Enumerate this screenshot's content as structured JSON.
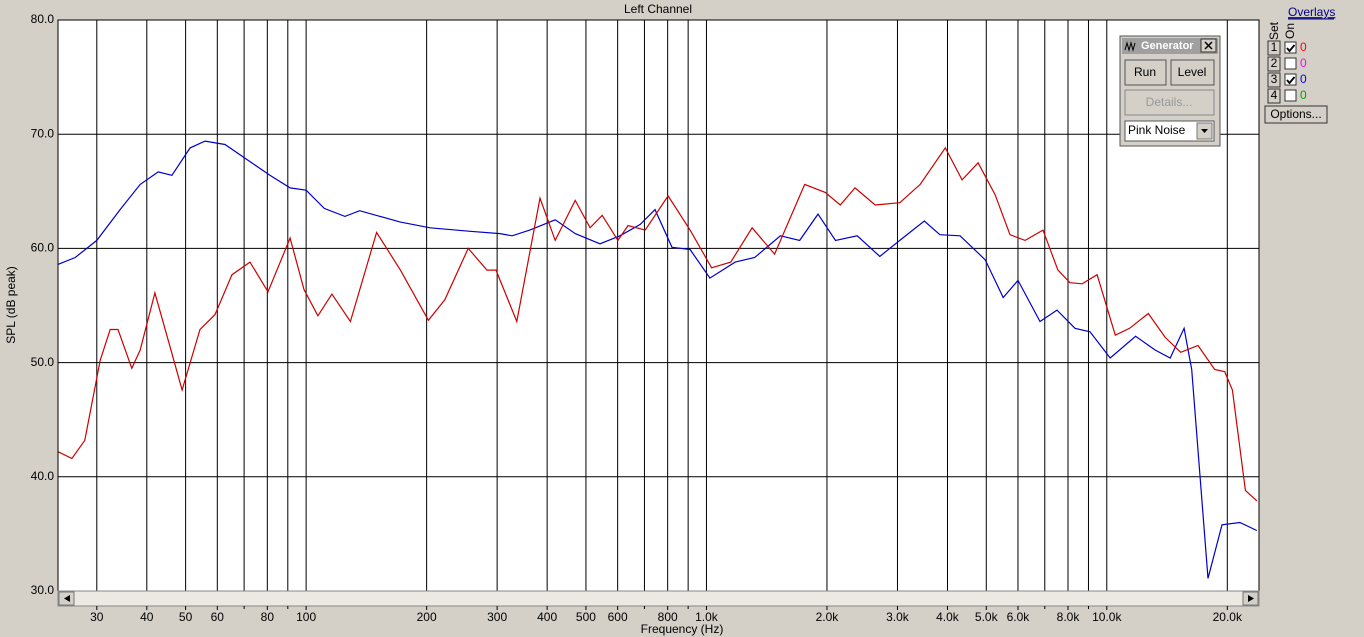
{
  "chart_data": {
    "type": "line",
    "title": "Left Channel",
    "xlabel": "Frequency (Hz)",
    "ylabel": "SPL (dB peak)",
    "xscale": "log",
    "grid": true,
    "xlim": [
      24,
      24000
    ],
    "ylim": [
      30,
      80
    ],
    "yticks": [
      {
        "value": 30,
        "label": "30.0"
      },
      {
        "value": 40,
        "label": "40.0"
      },
      {
        "value": 50,
        "label": "50.0"
      },
      {
        "value": 60,
        "label": "60.0"
      },
      {
        "value": 70,
        "label": "70.0"
      },
      {
        "value": 80,
        "label": "80.0"
      }
    ],
    "xticks": [
      30,
      40,
      50,
      60,
      80,
      100,
      200,
      300,
      400,
      500,
      600,
      800,
      {
        "value": 1000,
        "label": "1.0k"
      },
      {
        "value": 2000,
        "label": "2.0k"
      },
      {
        "value": 3000,
        "label": "3.0k"
      },
      {
        "value": 4000,
        "label": "4.0k"
      },
      {
        "value": 5000,
        "label": "5.0k"
      },
      {
        "value": 6000,
        "label": "6.0k"
      },
      {
        "value": 8000,
        "label": "8.0k"
      },
      {
        "value": 10000,
        "label": "10.0k"
      },
      {
        "value": 20000,
        "label": "20.0k"
      }
    ],
    "xminorticks": [
      70,
      90,
      700,
      900,
      7000,
      9000
    ],
    "series": [
      {
        "color": "#0000cc",
        "x": [
          24,
          26.5,
          30,
          34.3,
          38.5,
          42.7,
          46.2,
          51.3,
          55.9,
          62.7,
          72.4,
          81.2,
          91.2,
          100,
          111,
          125,
          136,
          153,
          172,
          204,
          257,
          305,
          327,
          362,
          419,
          470,
          542,
          608,
          683,
          744,
          820,
          910,
          1020,
          1180,
          1320,
          1530,
          1710,
          1900,
          2100,
          2380,
          2710,
          3040,
          3500,
          3830,
          4300,
          4970,
          5510,
          6000,
          6810,
          7510,
          8330,
          9080,
          10200,
          11800,
          13200,
          14400,
          15600,
          16300,
          17900,
          19400,
          21500,
          23700
        ],
        "values": [
          58.6,
          59.2,
          60.7,
          63.4,
          65.6,
          66.7,
          66.4,
          68.8,
          69.4,
          69.1,
          67.6,
          66.4,
          65.3,
          65.1,
          63.5,
          62.8,
          63.3,
          62.8,
          62.3,
          61.8,
          61.5,
          61.3,
          61.1,
          61.6,
          62.5,
          61.3,
          60.4,
          61.1,
          62.1,
          63.4,
          60.1,
          59.9,
          57.4,
          58.8,
          59.2,
          61.1,
          60.7,
          63.0,
          60.7,
          61.1,
          59.3,
          60.7,
          62.4,
          61.2,
          61.1,
          59.0,
          55.7,
          57.2,
          53.6,
          54.6,
          53.0,
          52.7,
          50.4,
          52.3,
          51.1,
          50.4,
          53.0,
          49.4,
          31.1,
          35.8,
          36.0,
          35.3
        ]
      },
      {
        "color": "#cc0000",
        "x": [
          24,
          26,
          28,
          30.6,
          32.4,
          33.9,
          36.7,
          38.5,
          41.9,
          45.2,
          49,
          54.3,
          59.2,
          65.3,
          72.4,
          80.3,
          91.2,
          98.8,
          107,
          116,
          129,
          150,
          172,
          202,
          222,
          254,
          283,
          298,
          336,
          384,
          419,
          470,
          512,
          549,
          601,
          637,
          703,
          802,
          910,
          1030,
          1150,
          1300,
          1480,
          1760,
          1980,
          2160,
          2350,
          2640,
          3040,
          3420,
          3950,
          4350,
          4770,
          5260,
          5730,
          6250,
          6930,
          7550,
          8090,
          8680,
          9460,
          10500,
          11400,
          12700,
          14000,
          15300,
          16900,
          18600,
          19700,
          20600,
          22200,
          23700
        ],
        "values": [
          42.2,
          41.6,
          43.2,
          50.2,
          52.9,
          52.9,
          49.5,
          51.1,
          56.1,
          52.0,
          47.6,
          52.9,
          54.2,
          57.7,
          58.8,
          56.2,
          60.9,
          56.4,
          54.1,
          56.0,
          53.6,
          61.4,
          58.1,
          53.7,
          55.5,
          60.0,
          58.1,
          58.1,
          53.6,
          64.4,
          60.7,
          64.2,
          61.8,
          62.9,
          60.7,
          62.0,
          61.6,
          64.6,
          61.6,
          58.3,
          58.8,
          61.8,
          59.5,
          65.6,
          64.9,
          63.8,
          65.3,
          63.8,
          64.0,
          65.6,
          68.8,
          66.0,
          67.5,
          64.7,
          61.2,
          60.7,
          61.6,
          58.1,
          57.0,
          56.9,
          57.7,
          52.4,
          53.0,
          54.3,
          52.2,
          50.9,
          51.5,
          49.4,
          49.2,
          47.6,
          38.8,
          37.9
        ]
      }
    ]
  },
  "generator": {
    "title": "Generator",
    "run": "Run",
    "level": "Level",
    "details": "Details...",
    "signal": "Pink Noise"
  },
  "overlays": {
    "title": "Overlays",
    "set_label": "Set",
    "on_label": "On",
    "options": "Options...",
    "rows": [
      {
        "set": "1",
        "checked": true,
        "value": "0",
        "color": "#ff0000"
      },
      {
        "set": "2",
        "checked": false,
        "value": "0",
        "color": "#ff00ff"
      },
      {
        "set": "3",
        "checked": true,
        "value": "0",
        "color": "#0000ff"
      },
      {
        "set": "4",
        "checked": false,
        "value": "0",
        "color": "#00a000"
      }
    ]
  }
}
